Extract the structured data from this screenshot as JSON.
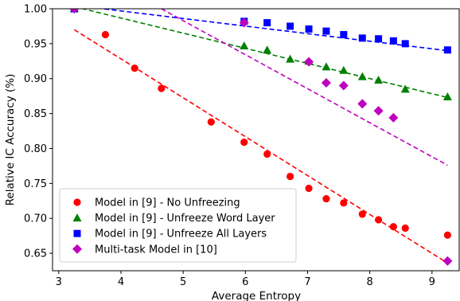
{
  "chart_data": {
    "type": "scatter",
    "xlabel": "Average Entropy",
    "ylabel": "Relative IC Accuracy (%)",
    "xlim": [
      2.9,
      9.45
    ],
    "ylim": [
      0.625,
      1.0
    ],
    "xticks": [
      3,
      4,
      5,
      6,
      7,
      8,
      9
    ],
    "yticks": [
      0.65,
      0.7,
      0.75,
      0.8,
      0.85,
      0.9,
      0.95,
      1.0
    ],
    "grid": false,
    "legend_position": "lower-left",
    "series": [
      {
        "name": "Model in [9] - No Unfreezing",
        "marker": "circle",
        "color": "#ff0000",
        "x": [
          3.25,
          3.75,
          4.22,
          4.65,
          5.45,
          5.98,
          6.35,
          6.72,
          7.02,
          7.3,
          7.58,
          7.88,
          8.14,
          8.38,
          8.57,
          9.25
        ],
        "y": [
          1.0,
          0.963,
          0.915,
          0.886,
          0.838,
          0.809,
          0.792,
          0.76,
          0.743,
          0.728,
          0.722,
          0.706,
          0.698,
          0.688,
          0.686,
          0.676
        ],
        "trend": {
          "x": [
            3.25,
            9.25
          ],
          "y": [
            0.97,
            0.636
          ]
        }
      },
      {
        "name": "Model in [9] - Unfreeze Word Layer",
        "marker": "triangle",
        "color": "#008000",
        "x": [
          3.25,
          5.98,
          6.35,
          6.72,
          7.02,
          7.3,
          7.58,
          7.88,
          8.14,
          8.57,
          9.25
        ],
        "y": [
          1.0,
          0.947,
          0.941,
          0.928,
          0.925,
          0.917,
          0.912,
          0.903,
          0.898,
          0.885,
          0.874
        ],
        "trend": {
          "x": [
            3.25,
            9.25
          ],
          "y": [
            1.003,
            0.873
          ]
        }
      },
      {
        "name": "Model in [9] - Unfreeze All Layers",
        "marker": "square",
        "color": "#0000ff",
        "x": [
          3.25,
          5.98,
          6.35,
          6.72,
          7.02,
          7.3,
          7.58,
          7.88,
          8.14,
          8.38,
          8.57,
          9.25
        ],
        "y": [
          1.0,
          0.982,
          0.98,
          0.975,
          0.971,
          0.968,
          0.963,
          0.958,
          0.957,
          0.954,
          0.95,
          0.941
        ],
        "trend": {
          "x": [
            3.25,
            9.25
          ],
          "y": [
            1.005,
            0.94
          ]
        }
      },
      {
        "name": "Multi-task Model in [10]",
        "marker": "diamond",
        "color": "#bf00bf",
        "x": [
          3.25,
          5.98,
          7.02,
          7.3,
          7.58,
          7.88,
          8.14,
          8.38,
          9.25
        ],
        "y": [
          1.0,
          0.98,
          0.924,
          0.894,
          0.89,
          0.864,
          0.854,
          0.844,
          0.639
        ],
        "trend": {
          "x": [
            4.65,
            9.25
          ],
          "y": [
            1.0,
            0.776
          ]
        }
      }
    ]
  }
}
